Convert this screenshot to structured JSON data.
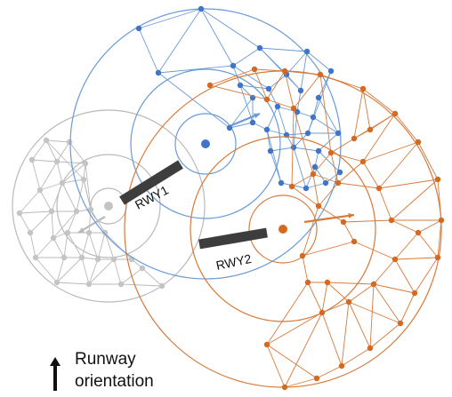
{
  "runways": [
    {
      "name": "runway-1",
      "label": "RWY1"
    },
    {
      "name": "runway-2",
      "label": "RWY2"
    }
  ],
  "legend": {
    "line1": "Runway",
    "line2": "orientation",
    "icon": "up-arrow-icon"
  },
  "colors": {
    "gray": "#b9b9b9",
    "gray_node": "#c4c4c4",
    "blue": "#6a9bd6",
    "blue_node": "#3f74c7",
    "orange": "#d77a3b",
    "orange_node": "#d4691f",
    "runway": "#3d3d3d",
    "text": "#111111"
  },
  "networks": [
    {
      "name": "gray-network",
      "color_key": "gray",
      "node_color_key": "gray_node"
    },
    {
      "name": "blue-network",
      "color_key": "blue",
      "node_color_key": "blue_node"
    },
    {
      "name": "orange-network",
      "color_key": "orange",
      "node_color_key": "orange_node"
    }
  ]
}
